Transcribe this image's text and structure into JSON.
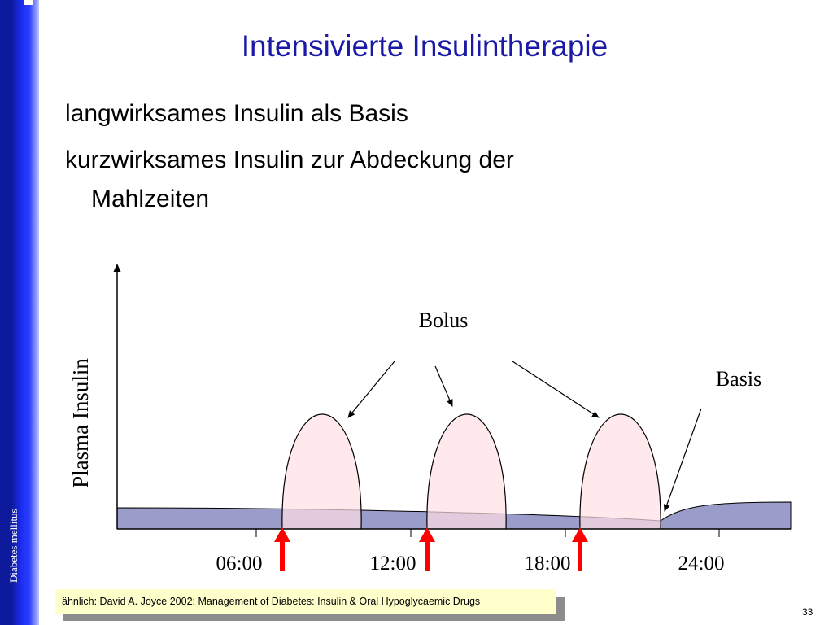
{
  "sidebar": {
    "label": "Diabetes mellitus"
  },
  "slide": {
    "title": "Intensivierte Insulintherapie",
    "bullets": [
      {
        "line1": "langwirksames Insulin als Basis"
      },
      {
        "line1": "kurzwirksames Insulin zur Abdeckung der",
        "line2": "Mahlzeiten"
      }
    ]
  },
  "diagram": {
    "ylabel": "Plasma Insulin",
    "x_ticks": [
      "06:00",
      "12:00",
      "18:00",
      "24:00"
    ],
    "bolus_label": "Bolus",
    "basis_label": "Basis",
    "colors": {
      "basal_fill": "#9a9cc9",
      "bolus_fill": "#ffe0e4",
      "injection_arrow": "#ff0000",
      "axis": "#000000"
    }
  },
  "citation": "ähnlich: David A. Joyce 2002: Management of Diabetes:  Insulin & Oral Hypoglycaemic Drugs",
  "page_number": "33"
}
